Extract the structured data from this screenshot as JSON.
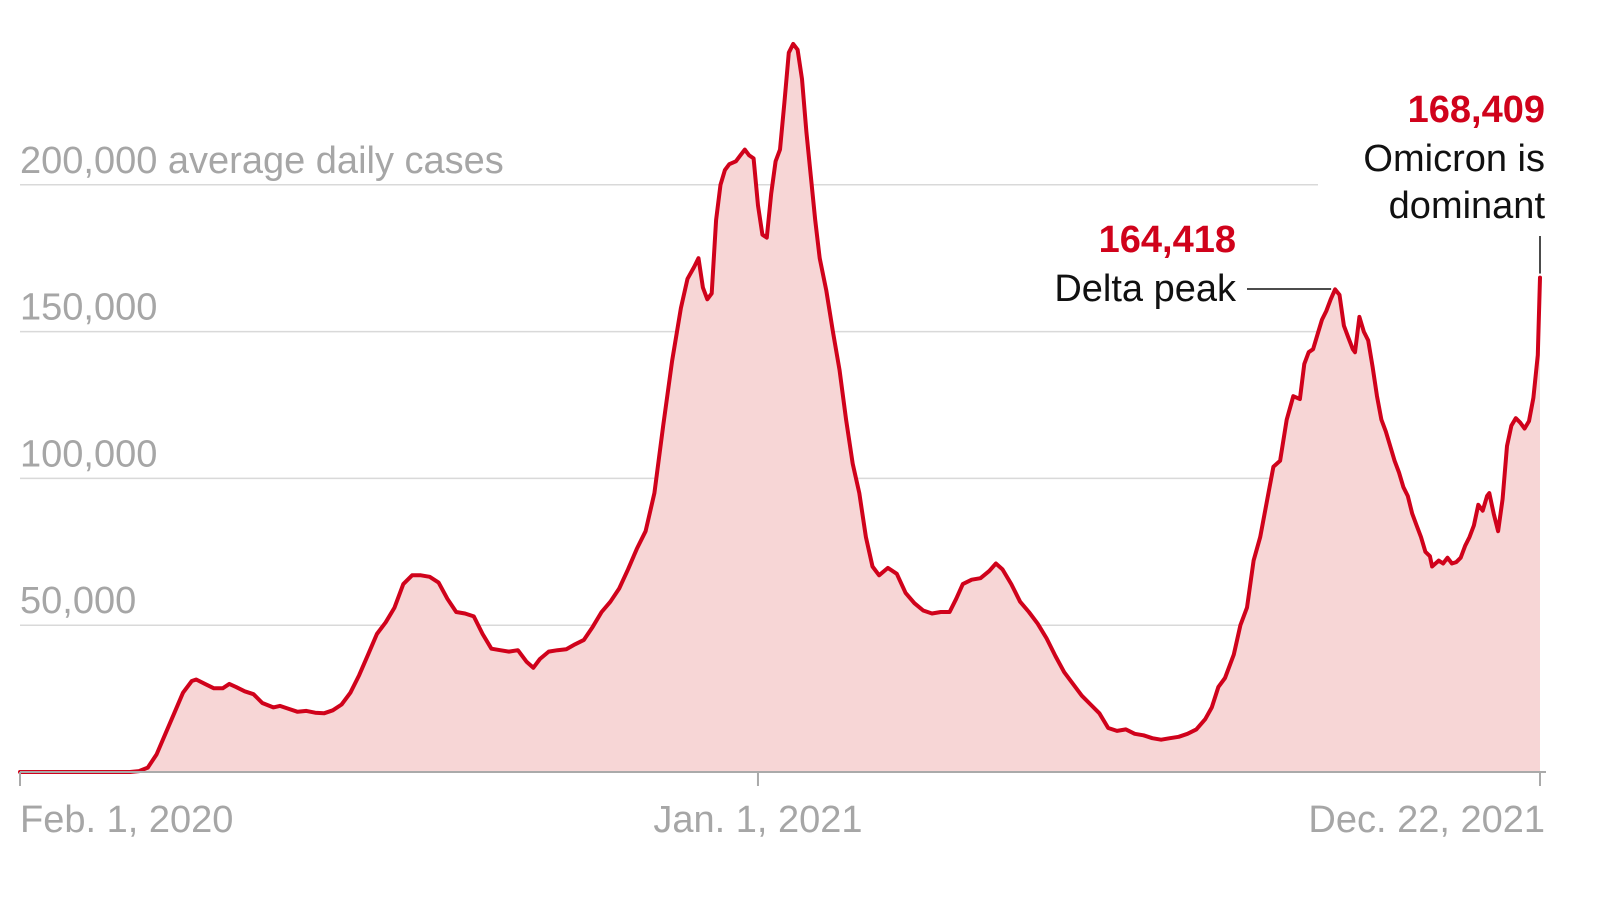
{
  "chart_data": {
    "type": "area",
    "title": "",
    "ylabel": "average daily cases",
    "ylim": [
      0,
      250000
    ],
    "yticks": [
      {
        "value": 50000,
        "label": "50,000"
      },
      {
        "value": 100000,
        "label": "100,000"
      },
      {
        "value": 150000,
        "label": "150,000"
      },
      {
        "value": 200000,
        "label": "200,000 average daily cases"
      }
    ],
    "xticks": [
      {
        "day": 0,
        "label": "Feb. 1, 2020"
      },
      {
        "day": 335,
        "label": "Jan. 1, 2021"
      },
      {
        "day": 690,
        "label": "Dec. 22, 2021"
      }
    ],
    "x_unit": "days since Feb. 1, 2020",
    "xlim": [
      0,
      695
    ],
    "colors": {
      "line": "#d0021b",
      "fill": "#f7d6d6",
      "grid": "#d9d9d9",
      "axis": "#aaaaaa"
    },
    "series": [
      {
        "name": "7-day average daily cases",
        "points": [
          [
            0,
            0
          ],
          [
            50,
            0
          ],
          [
            54,
            300
          ],
          [
            58,
            1500
          ],
          [
            62,
            6000
          ],
          [
            66,
            13000
          ],
          [
            70,
            20000
          ],
          [
            74,
            27000
          ],
          [
            78,
            31000
          ],
          [
            80,
            31500
          ],
          [
            84,
            30000
          ],
          [
            88,
            28500
          ],
          [
            92,
            28500
          ],
          [
            95,
            30000
          ],
          [
            98,
            29000
          ],
          [
            102,
            27500
          ],
          [
            106,
            26500
          ],
          [
            110,
            23500
          ],
          [
            115,
            22000
          ],
          [
            118,
            22500
          ],
          [
            122,
            21500
          ],
          [
            126,
            20500
          ],
          [
            130,
            20800
          ],
          [
            134,
            20200
          ],
          [
            138,
            20000
          ],
          [
            142,
            21000
          ],
          [
            146,
            23000
          ],
          [
            150,
            27000
          ],
          [
            154,
            33000
          ],
          [
            158,
            40000
          ],
          [
            162,
            47000
          ],
          [
            166,
            51000
          ],
          [
            170,
            56000
          ],
          [
            174,
            64000
          ],
          [
            178,
            67000
          ],
          [
            182,
            67000
          ],
          [
            186,
            66500
          ],
          [
            190,
            64500
          ],
          [
            194,
            59000
          ],
          [
            198,
            54500
          ],
          [
            202,
            54000
          ],
          [
            206,
            53000
          ],
          [
            210,
            47000
          ],
          [
            214,
            42000
          ],
          [
            218,
            41500
          ],
          [
            222,
            41000
          ],
          [
            226,
            41500
          ],
          [
            230,
            37500
          ],
          [
            233,
            35500
          ],
          [
            236,
            38500
          ],
          [
            240,
            41000
          ],
          [
            244,
            41500
          ],
          [
            248,
            41800
          ],
          [
            252,
            43500
          ],
          [
            256,
            45000
          ],
          [
            260,
            49500
          ],
          [
            264,
            54500
          ],
          [
            268,
            58000
          ],
          [
            272,
            62500
          ],
          [
            276,
            69000
          ],
          [
            280,
            76000
          ],
          [
            284,
            82000
          ],
          [
            288,
            95000
          ],
          [
            292,
            118000
          ],
          [
            296,
            140000
          ],
          [
            300,
            158000
          ],
          [
            303,
            168000
          ],
          [
            306,
            172000
          ],
          [
            308,
            175000
          ],
          [
            310,
            165000
          ],
          [
            312,
            161000
          ],
          [
            314,
            163000
          ],
          [
            316,
            188000
          ],
          [
            318,
            200000
          ],
          [
            320,
            205000
          ],
          [
            322,
            207000
          ],
          [
            325,
            208000
          ],
          [
            327,
            210000
          ],
          [
            329,
            212000
          ],
          [
            331,
            210000
          ],
          [
            333,
            209000
          ],
          [
            335,
            193000
          ],
          [
            337,
            183000
          ],
          [
            339,
            182000
          ],
          [
            341,
            197000
          ],
          [
            343,
            208000
          ],
          [
            345,
            212000
          ],
          [
            347,
            228000
          ],
          [
            349,
            245000
          ],
          [
            351,
            248000
          ],
          [
            353,
            246000
          ],
          [
            355,
            236000
          ],
          [
            357,
            218000
          ],
          [
            359,
            203000
          ],
          [
            361,
            188000
          ],
          [
            363,
            175000
          ],
          [
            366,
            164000
          ],
          [
            369,
            150000
          ],
          [
            372,
            137000
          ],
          [
            375,
            120000
          ],
          [
            378,
            105000
          ],
          [
            381,
            95000
          ],
          [
            384,
            80000
          ],
          [
            387,
            70000
          ],
          [
            390,
            67000
          ],
          [
            394,
            69500
          ],
          [
            398,
            67500
          ],
          [
            402,
            61000
          ],
          [
            406,
            57500
          ],
          [
            410,
            55000
          ],
          [
            414,
            54000
          ],
          [
            418,
            54500
          ],
          [
            422,
            54500
          ],
          [
            425,
            59000
          ],
          [
            428,
            64000
          ],
          [
            432,
            65500
          ],
          [
            436,
            66000
          ],
          [
            440,
            68500
          ],
          [
            443,
            71000
          ],
          [
            446,
            69000
          ],
          [
            450,
            64000
          ],
          [
            454,
            58000
          ],
          [
            458,
            54500
          ],
          [
            462,
            50500
          ],
          [
            466,
            45500
          ],
          [
            470,
            39500
          ],
          [
            474,
            34000
          ],
          [
            478,
            30000
          ],
          [
            482,
            26000
          ],
          [
            486,
            23000
          ],
          [
            490,
            20000
          ],
          [
            494,
            15000
          ],
          [
            498,
            14000
          ],
          [
            502,
            14500
          ],
          [
            506,
            13000
          ],
          [
            510,
            12500
          ],
          [
            514,
            11500
          ],
          [
            518,
            11000
          ],
          [
            522,
            11500
          ],
          [
            526,
            12000
          ],
          [
            530,
            13000
          ],
          [
            534,
            14500
          ],
          [
            538,
            18000
          ],
          [
            541,
            22000
          ],
          [
            544,
            29000
          ],
          [
            547,
            32000
          ],
          [
            551,
            40000
          ],
          [
            554,
            50000
          ],
          [
            557,
            56000
          ],
          [
            560,
            72000
          ],
          [
            563,
            80000
          ],
          [
            566,
            92000
          ],
          [
            569,
            104000
          ],
          [
            572,
            106000
          ],
          [
            575,
            120000
          ],
          [
            578,
            128000
          ],
          [
            581,
            127000
          ],
          [
            583,
            139000
          ],
          [
            585,
            143000
          ],
          [
            587,
            144000
          ],
          [
            589,
            149000
          ],
          [
            591,
            154000
          ],
          [
            593,
            157000
          ],
          [
            595,
            161000
          ],
          [
            597,
            164418
          ],
          [
            599,
            162500
          ],
          [
            601,
            152000
          ],
          [
            603,
            148000
          ],
          [
            605,
            144000
          ],
          [
            606,
            143000
          ],
          [
            608,
            155000
          ],
          [
            610,
            150000
          ],
          [
            612,
            147000
          ],
          [
            614,
            138000
          ],
          [
            616,
            128000
          ],
          [
            618,
            120000
          ],
          [
            620,
            116000
          ],
          [
            622,
            111000
          ],
          [
            624,
            106000
          ],
          [
            626,
            102000
          ],
          [
            628,
            97000
          ],
          [
            630,
            94000
          ],
          [
            632,
            88000
          ],
          [
            634,
            84000
          ],
          [
            636,
            80000
          ],
          [
            638,
            75000
          ],
          [
            640,
            73500
          ],
          [
            641,
            70000
          ],
          [
            644,
            72000
          ],
          [
            646,
            71000
          ],
          [
            648,
            73000
          ],
          [
            650,
            71000
          ],
          [
            652,
            71500
          ],
          [
            654,
            73000
          ],
          [
            656,
            77000
          ],
          [
            658,
            80000
          ],
          [
            660,
            84000
          ],
          [
            662,
            91000
          ],
          [
            664,
            89000
          ],
          [
            666,
            94000
          ],
          [
            667,
            95000
          ],
          [
            669,
            88000
          ],
          [
            671,
            82000
          ],
          [
            673,
            93000
          ],
          [
            675,
            111000
          ],
          [
            677,
            118000
          ],
          [
            679,
            120500
          ],
          [
            681,
            119000
          ],
          [
            683,
            117000
          ],
          [
            685,
            119500
          ],
          [
            687,
            127500
          ],
          [
            689,
            142000
          ],
          [
            690,
            168409
          ]
        ]
      }
    ],
    "annotations": [
      {
        "day": 597,
        "value": 164418,
        "value_label": "164,418",
        "text_lines": [
          "Delta peak"
        ]
      },
      {
        "day": 690,
        "value": 168409,
        "value_label": "168,409",
        "text_lines": [
          "Omicron is",
          "dominant"
        ]
      }
    ]
  }
}
